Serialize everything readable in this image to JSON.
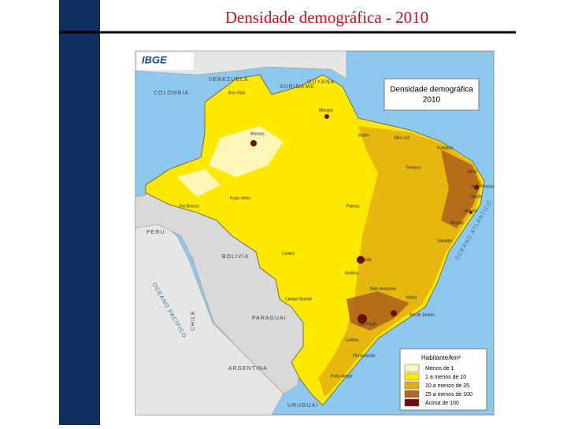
{
  "slide": {
    "title": "Densidade demográfica - 2010"
  },
  "map": {
    "logo": "IBGE",
    "title_lines": [
      "Densidade demográfica",
      "2010"
    ],
    "legend": {
      "title": "Habitante/km²",
      "items": [
        {
          "label": "Menos de 1",
          "color": "#fff7b8"
        },
        {
          "label": "1 a menos de 10",
          "color": "#ffe800"
        },
        {
          "label": "10 a menos de 25",
          "color": "#e2ae10"
        },
        {
          "label": "25 a menos de 100",
          "color": "#b0651c"
        },
        {
          "label": "Acima de 100",
          "color": "#6a0e0e"
        }
      ]
    },
    "countries": [
      "VENEZUELA",
      "GUYANA",
      "SURINAME",
      "COLOMBIA",
      "PERU",
      "BOLIVIA",
      "PARAGUAI",
      "ARGENTINA",
      "CHILE",
      "URUGUAI"
    ],
    "oceans": [
      "OCEANO ATLÂNTICO",
      "OCEANO PACÍFICO"
    ],
    "cities": [
      "Boa Vista",
      "Macapá",
      "Manaus",
      "Belém",
      "São Luís",
      "Fortaleza",
      "Teresina",
      "Natal",
      "João Pessoa",
      "Recife",
      "Maceió",
      "Aracaju",
      "Salvador",
      "Palmas",
      "Porto Velho",
      "Rio Branco",
      "Cuiabá",
      "Goiânia",
      "Brasília",
      "Campo Grande",
      "Belo Horizonte",
      "Vitória",
      "Rio de Janeiro",
      "São Paulo",
      "Curitiba",
      "Florianópolis",
      "Porto Alegre"
    ]
  }
}
